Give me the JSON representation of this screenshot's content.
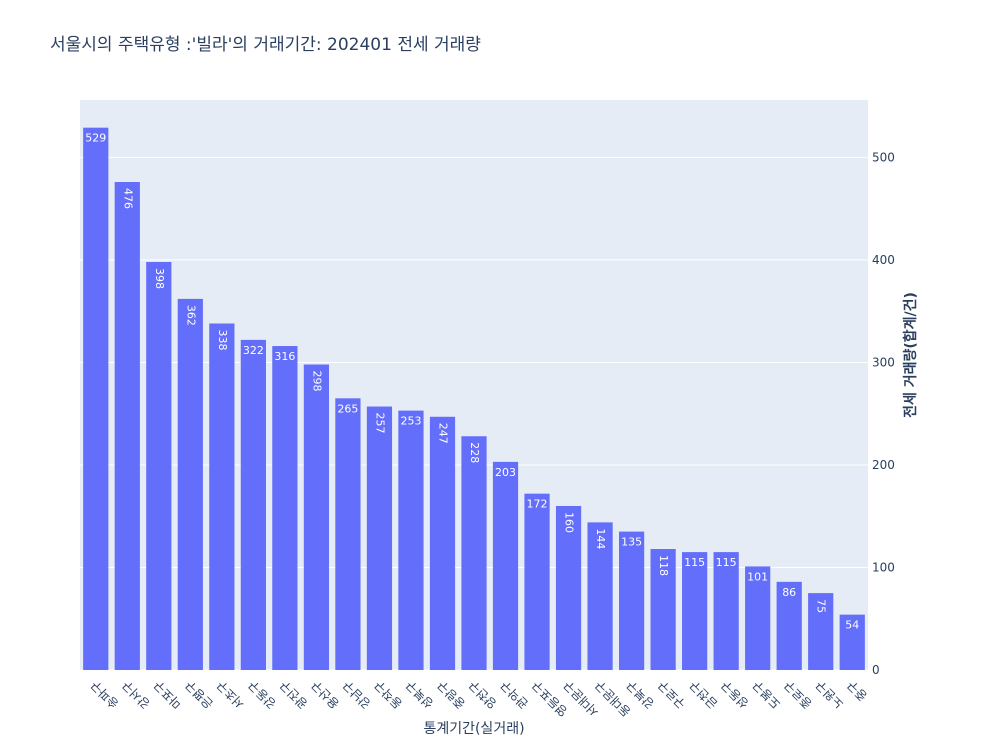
{
  "chart_data": {
    "type": "bar",
    "title": "서울시의 주택유형 :'빌라'의 거래기간: 202401 전세 거래량",
    "xlabel": "통계기간(실거래)",
    "ylabel": "전세 거래량(합계/건)",
    "categories": [
      "송파구",
      "강서구",
      "마포구",
      "은평구",
      "서초구",
      "강동구",
      "광진구",
      "용산구",
      "강남구",
      "동작구",
      "성북구",
      "중랑구",
      "양천구",
      "관악구",
      "영등포구",
      "서대문구",
      "동대문구",
      "강북구",
      "구로구",
      "금천구",
      "성동구",
      "도봉구",
      "종로구",
      "노원구",
      "중구"
    ],
    "values": [
      529,
      476,
      398,
      362,
      338,
      322,
      316,
      298,
      265,
      257,
      253,
      247,
      228,
      203,
      172,
      160,
      144,
      135,
      118,
      115,
      115,
      101,
      86,
      75,
      54
    ],
    "ylim": [
      0,
      556
    ],
    "yticks": [
      0,
      100,
      200,
      300,
      400,
      500
    ],
    "y_axis_side": "right",
    "grid": true,
    "bar_color": "#636efa",
    "plot_bg": "#e5ecf6"
  }
}
